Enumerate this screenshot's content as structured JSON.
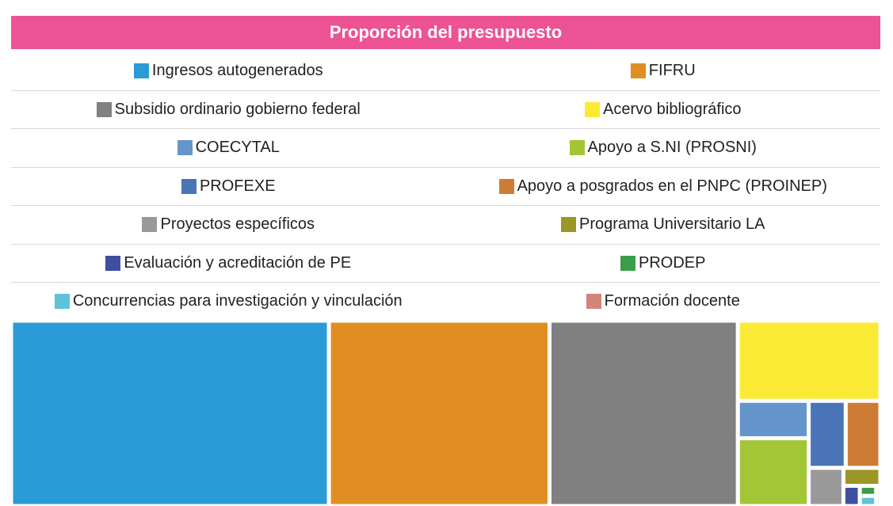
{
  "chart_data": {
    "type": "treemap",
    "title": "Proporción del presupuesto",
    "categories": [
      "Ingresos autogenerados",
      "FIFRU",
      "Subsidio ordinario gobierno federal",
      "Acervo bibliográfico",
      "COECYTAL",
      "Apoyo a S.NI (PROSNI)",
      "PROFEXE",
      "Apoyo a posgrados en el PNPC (PROINEP)",
      "Proyectos específicos",
      "Programa Universitario LA",
      "Evaluación y acreditación de PE",
      "PRODEP",
      "Concurrencias para investigación y vinculación",
      "Formación docente"
    ],
    "values": [
      35.6,
      24.7,
      21.1,
      6.9,
      1.6,
      2.9,
      1.5,
      1.4,
      0.8,
      0.4,
      0.2,
      0.1,
      0.1,
      0.05
    ],
    "colors": [
      "#2a9bd6",
      "#e08e22",
      "#808080",
      "#fbea35",
      "#6495cb",
      "#a3c636",
      "#4a74b8",
      "#cd7c35",
      "#999999",
      "#9b9625",
      "#3e4fa0",
      "#3b9d49",
      "#5ec3d8",
      "#d18577"
    ]
  }
}
